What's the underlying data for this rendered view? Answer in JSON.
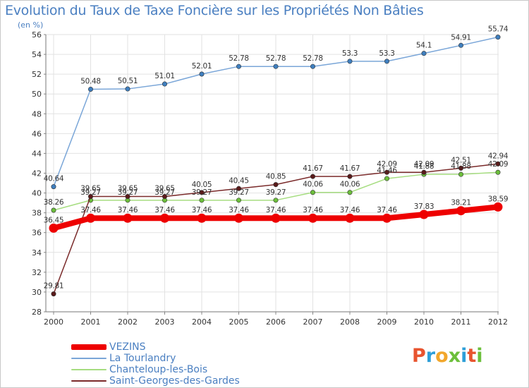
{
  "header": {
    "title": "Evolution du Taux de Taxe Foncière sur les Propriétés Non Bâties",
    "subtitle": "(en %)"
  },
  "logo": {
    "text": "Proxiti",
    "letter_colors": [
      "#e8542f",
      "#2f9fd8",
      "#f2a72b",
      "#6cbf3b",
      "#2f9fd8",
      "#e8542f",
      "#6cbf3b"
    ]
  },
  "chart_data": {
    "type": "line",
    "title": "Evolution du Taux de Taxe Foncière sur les Propriétés Non Bâties",
    "ylabel": "(en %)",
    "x": [
      "2000",
      "2001",
      "2002",
      "2003",
      "2004",
      "2005",
      "2006",
      "2007",
      "2008",
      "2009",
      "2010",
      "2011",
      "2012"
    ],
    "ylim": [
      28,
      56
    ],
    "yticks": [
      28,
      30,
      32,
      34,
      36,
      38,
      40,
      42,
      44,
      46,
      48,
      50,
      52,
      54,
      56
    ],
    "grid": true,
    "legend_position": "bottom-left",
    "series": [
      {
        "name": "VEZINS",
        "color": "#ee0000",
        "values": [
          36.45,
          37.46,
          37.46,
          37.46,
          37.46,
          37.46,
          37.46,
          37.46,
          37.46,
          37.46,
          37.83,
          38.21,
          38.59
        ],
        "labels": [
          "36.45",
          "37.46",
          "37.46",
          "37.46",
          "37.46",
          "37.46",
          "37.46",
          "37.46",
          "37.46",
          "37.46",
          "37.83",
          "38.21",
          "38.59"
        ]
      },
      {
        "name": "La Tourlandry",
        "color": "#7aa6d8",
        "values": [
          40.64,
          50.48,
          50.51,
          51.01,
          52.01,
          52.78,
          52.78,
          52.78,
          53.3,
          53.3,
          54.1,
          54.91,
          55.74
        ],
        "labels": [
          "40.64",
          "50.48",
          "50.51",
          "51.01",
          "52.01",
          "52.78",
          "52.78",
          "52.78",
          "53.3",
          "53.3",
          "54.1",
          "54.91",
          "55.74"
        ]
      },
      {
        "name": "Chanteloup-les-Bois",
        "color": "#a6dd80",
        "values": [
          38.26,
          39.27,
          39.27,
          39.27,
          39.27,
          39.27,
          39.27,
          40.06,
          40.06,
          41.46,
          41.88,
          41.88,
          42.09
        ],
        "labels": [
          "38.26",
          "39.27",
          "39.27",
          "39.27",
          "39.27",
          "39.27",
          "39.27",
          "40.06",
          "40.06",
          "41.46",
          "41.88",
          "41.88",
          "42.09"
        ]
      },
      {
        "name": "Saint-Georges-des-Gardes",
        "color": "#7a2a2a",
        "values": [
          29.81,
          39.65,
          39.65,
          39.65,
          40.05,
          40.45,
          40.85,
          41.67,
          41.67,
          42.09,
          42.09,
          42.51,
          42.94
        ],
        "labels": [
          "29.81",
          "39.65",
          "39.65",
          "39.65",
          "40.05",
          "40.45",
          "40.85",
          "41.67",
          "41.67",
          "42.09",
          "42.09",
          "42.51",
          "42.94"
        ]
      }
    ]
  }
}
